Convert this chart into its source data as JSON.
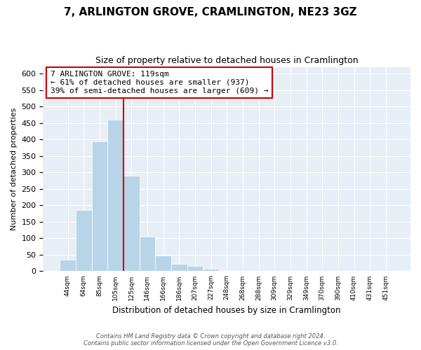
{
  "title": "7, ARLINGTON GROVE, CRAMLINGTON, NE23 3GZ",
  "subtitle": "Size of property relative to detached houses in Cramlington",
  "xlabel": "Distribution of detached houses by size in Cramlington",
  "ylabel": "Number of detached properties",
  "bar_labels": [
    "44sqm",
    "64sqm",
    "85sqm",
    "105sqm",
    "125sqm",
    "146sqm",
    "166sqm",
    "186sqm",
    "207sqm",
    "227sqm",
    "248sqm",
    "268sqm",
    "288sqm",
    "309sqm",
    "329sqm",
    "349sqm",
    "370sqm",
    "390sqm",
    "410sqm",
    "431sqm",
    "451sqm"
  ],
  "bar_values": [
    35,
    185,
    393,
    460,
    290,
    105,
    48,
    22,
    16,
    8,
    2,
    1,
    0,
    0,
    0,
    0,
    1,
    0,
    0,
    0,
    1
  ],
  "bar_color": "#b8d4e8",
  "vline_x_index": 4,
  "vline_color": "#cc0000",
  "annotation_line1": "7 ARLINGTON GROVE: 119sqm",
  "annotation_line2": "← 61% of detached houses are smaller (937)",
  "annotation_line3": "39% of semi-detached houses are larger (609) →",
  "annotation_box_facecolor": "#ffffff",
  "annotation_box_edgecolor": "#cc0000",
  "ylim": [
    0,
    620
  ],
  "yticks": [
    0,
    50,
    100,
    150,
    200,
    250,
    300,
    350,
    400,
    450,
    500,
    550,
    600
  ],
  "footnote": "Contains HM Land Registry data © Crown copyright and database right 2024.\nContains public sector information licensed under the Open Government Licence v3.0.",
  "fig_bg_color": "#ffffff",
  "plot_bg_color": "#e8eef6"
}
